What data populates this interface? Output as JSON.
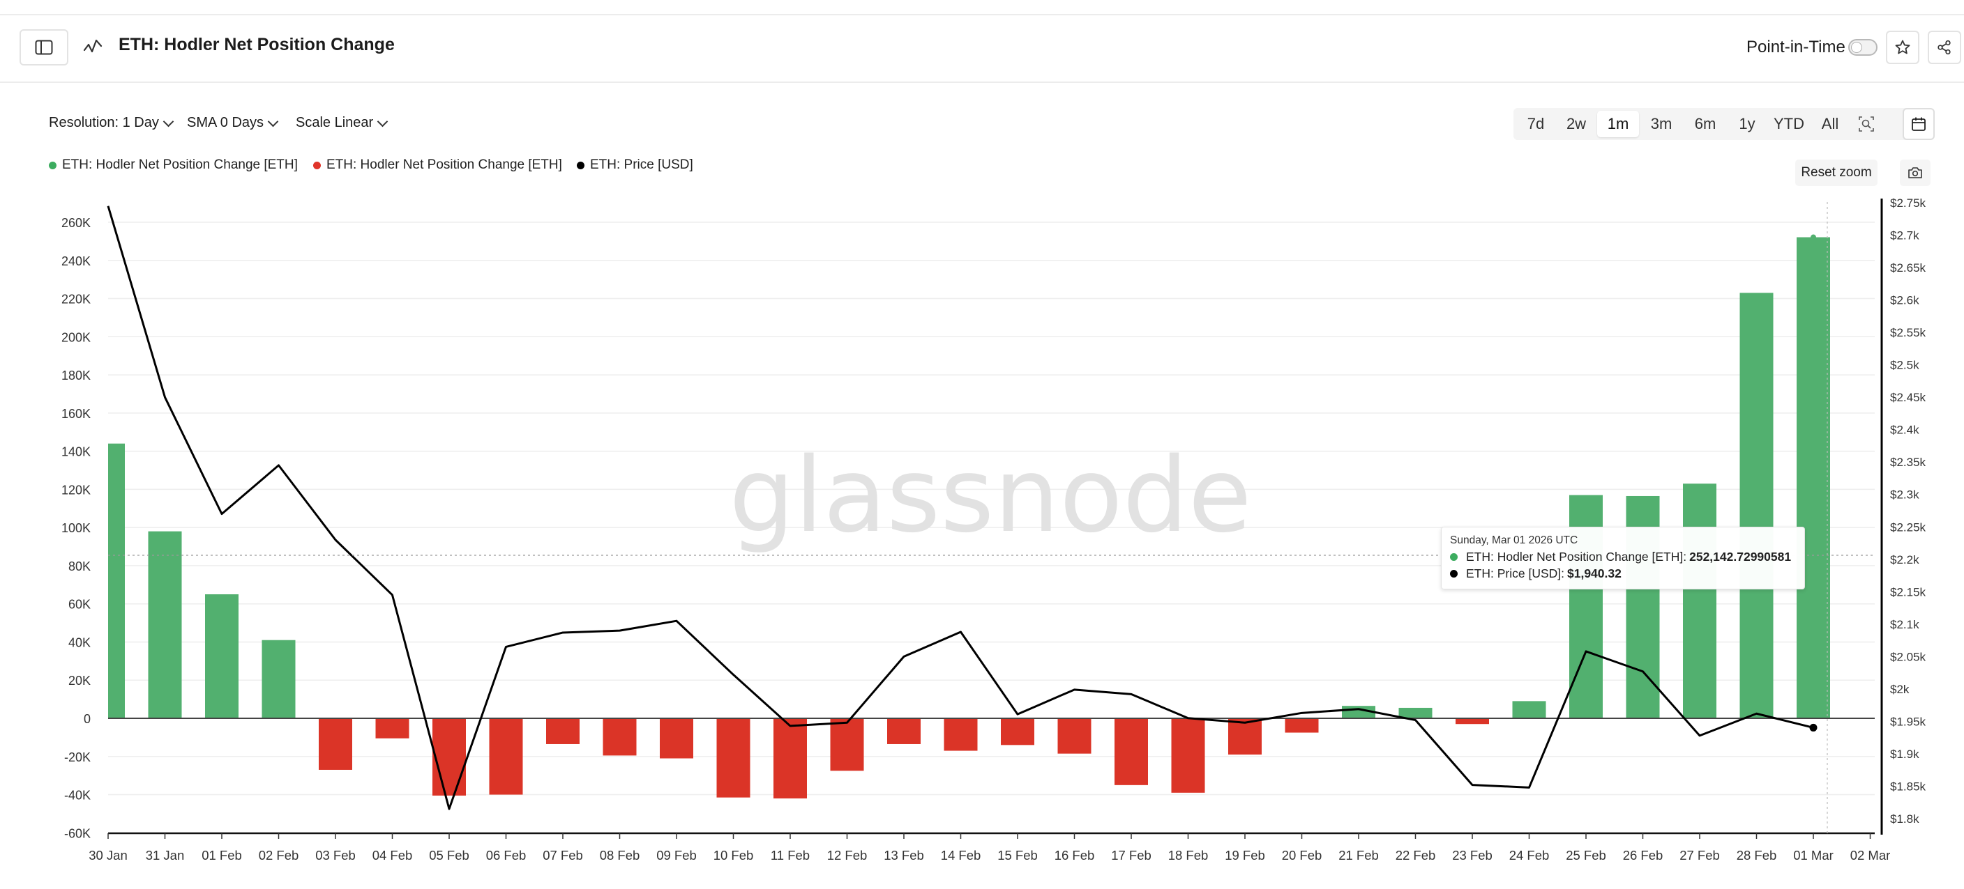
{
  "header": {
    "title": "ETH: Hodler Net Position Change",
    "point_in_time_label": "Point-in-Time"
  },
  "controls": {
    "resolution": "Resolution: 1 Day",
    "sma": "SMA 0 Days",
    "scale": "Scale Linear"
  },
  "ranges": [
    {
      "label": "7d",
      "active": false
    },
    {
      "label": "2w",
      "active": false
    },
    {
      "label": "1m",
      "active": true
    },
    {
      "label": "3m",
      "active": false
    },
    {
      "label": "6m",
      "active": false
    },
    {
      "label": "1y",
      "active": false
    },
    {
      "label": "YTD",
      "active": false
    },
    {
      "label": "All",
      "active": false
    }
  ],
  "legend": [
    {
      "label": "ETH: Hodler Net Position Change [ETH]",
      "color": "#3cac5f"
    },
    {
      "label": "ETH: Hodler Net Position Change [ETH]",
      "color": "#e0342a"
    },
    {
      "label": "ETH: Price [USD]",
      "color": "#000000"
    }
  ],
  "reset_zoom_label": "Reset zoom",
  "watermark": "glassnode",
  "tooltip": {
    "date": "Sunday, Mar 01 2026 UTC",
    "series1_label": "ETH: Hodler Net Position Change [ETH]:",
    "series1_value": "252,142.72990581",
    "series2_label": "ETH: Price [USD]:",
    "series2_value": "$1,940.32"
  },
  "colors": {
    "positive": "#52b06f",
    "negative": "#db3427",
    "price": "#000000"
  },
  "chart_data": {
    "type": "bar",
    "categories": [
      "30 Jan",
      "31 Jan",
      "01 Feb",
      "02 Feb",
      "03 Feb",
      "04 Feb",
      "05 Feb",
      "06 Feb",
      "07 Feb",
      "08 Feb",
      "09 Feb",
      "10 Feb",
      "11 Feb",
      "12 Feb",
      "13 Feb",
      "14 Feb",
      "15 Feb",
      "16 Feb",
      "17 Feb",
      "18 Feb",
      "19 Feb",
      "20 Feb",
      "21 Feb",
      "22 Feb",
      "23 Feb",
      "24 Feb",
      "25 Feb",
      "26 Feb",
      "27 Feb",
      "28 Feb",
      "01 Mar",
      "02 Mar"
    ],
    "series": [
      {
        "name": "ETH: Hodler Net Position Change [ETH]",
        "axis": "left",
        "values": [
          144000,
          98000,
          65000,
          41000,
          -27000,
          -10500,
          -40500,
          -40000,
          -13500,
          -19500,
          -21000,
          -41500,
          -42000,
          -27500,
          -13500,
          -17000,
          -14000,
          -18500,
          -35000,
          -39000,
          -19000,
          -7500,
          6500,
          5500,
          -3000,
          9000,
          117000,
          116500,
          123000,
          223000,
          252142.72990581,
          null
        ]
      },
      {
        "name": "ETH: Price [USD]",
        "axis": "right",
        "type": "line",
        "values": [
          2745,
          2450,
          2270,
          2345,
          2230,
          2145,
          1815,
          2065,
          2087,
          2090,
          2105,
          2022,
          1943,
          1948,
          2050,
          2088,
          1961,
          1999,
          1992,
          1955,
          1948,
          1963,
          1969,
          1952,
          1852,
          1848,
          2058,
          2027,
          1928,
          1962,
          1940.32,
          null
        ]
      }
    ],
    "y_left": {
      "ticks": [
        "260K",
        "240K",
        "220K",
        "200K",
        "180K",
        "160K",
        "140K",
        "120K",
        "100K",
        "80K",
        "60K",
        "40K",
        "20K",
        "0",
        "-20K",
        "-40K",
        "-60K"
      ],
      "range": [
        -60000,
        260000
      ]
    },
    "y_right": {
      "ticks": [
        "$2.75k",
        "$2.7k",
        "$2.65k",
        "$2.6k",
        "$2.55k",
        "$2.5k",
        "$2.45k",
        "$2.4k",
        "$2.35k",
        "$2.3k",
        "$2.25k",
        "$2.2k",
        "$2.15k",
        "$2.1k",
        "$2.05k",
        "$2k",
        "$1.95k",
        "$1.9k",
        "$1.85k",
        "$1.8k"
      ],
      "range": [
        1780,
        2760
      ]
    },
    "grid": true
  }
}
